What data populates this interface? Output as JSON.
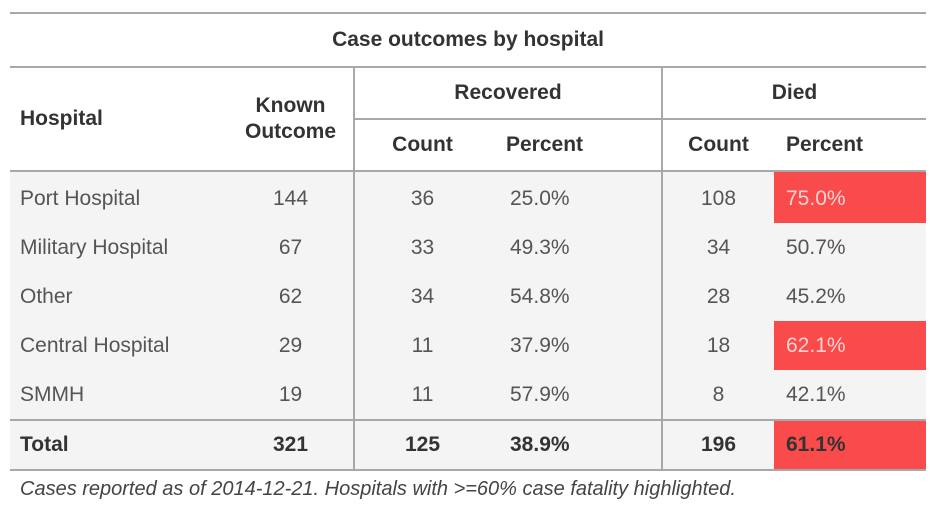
{
  "table": {
    "title": "Case outcomes by hospital",
    "headers": {
      "hospital": "Hospital",
      "known_outcome_line1": "Known",
      "known_outcome_line2": "Outcome",
      "recovered": "Recovered",
      "died": "Died",
      "count": "Count",
      "percent": "Percent"
    },
    "rows": [
      {
        "hospital": "Port Hospital",
        "known": "144",
        "rec_count": "36",
        "rec_pct": "25.0%",
        "died_count": "108",
        "died_pct": "75.0%"
      },
      {
        "hospital": "Military Hospital",
        "known": "67",
        "rec_count": "33",
        "rec_pct": "49.3%",
        "died_count": "34",
        "died_pct": "50.7%"
      },
      {
        "hospital": "Other",
        "known": "62",
        "rec_count": "34",
        "rec_pct": "54.8%",
        "died_count": "28",
        "died_pct": "45.2%"
      },
      {
        "hospital": "Central Hospital",
        "known": "29",
        "rec_count": "11",
        "rec_pct": "37.9%",
        "died_count": "18",
        "died_pct": "62.1%"
      },
      {
        "hospital": "SMMH",
        "known": "19",
        "rec_count": "11",
        "rec_pct": "57.9%",
        "died_count": "8",
        "died_pct": "42.1%"
      }
    ],
    "total": {
      "hospital": "Total",
      "known": "321",
      "rec_count": "125",
      "rec_pct": "38.9%",
      "died_count": "196",
      "died_pct": "61.1%"
    },
    "footnote": "Cases reported as of 2014-12-21. Hospitals with >=60% case fatality highlighted.",
    "highlight_color": "#f94b4b"
  }
}
